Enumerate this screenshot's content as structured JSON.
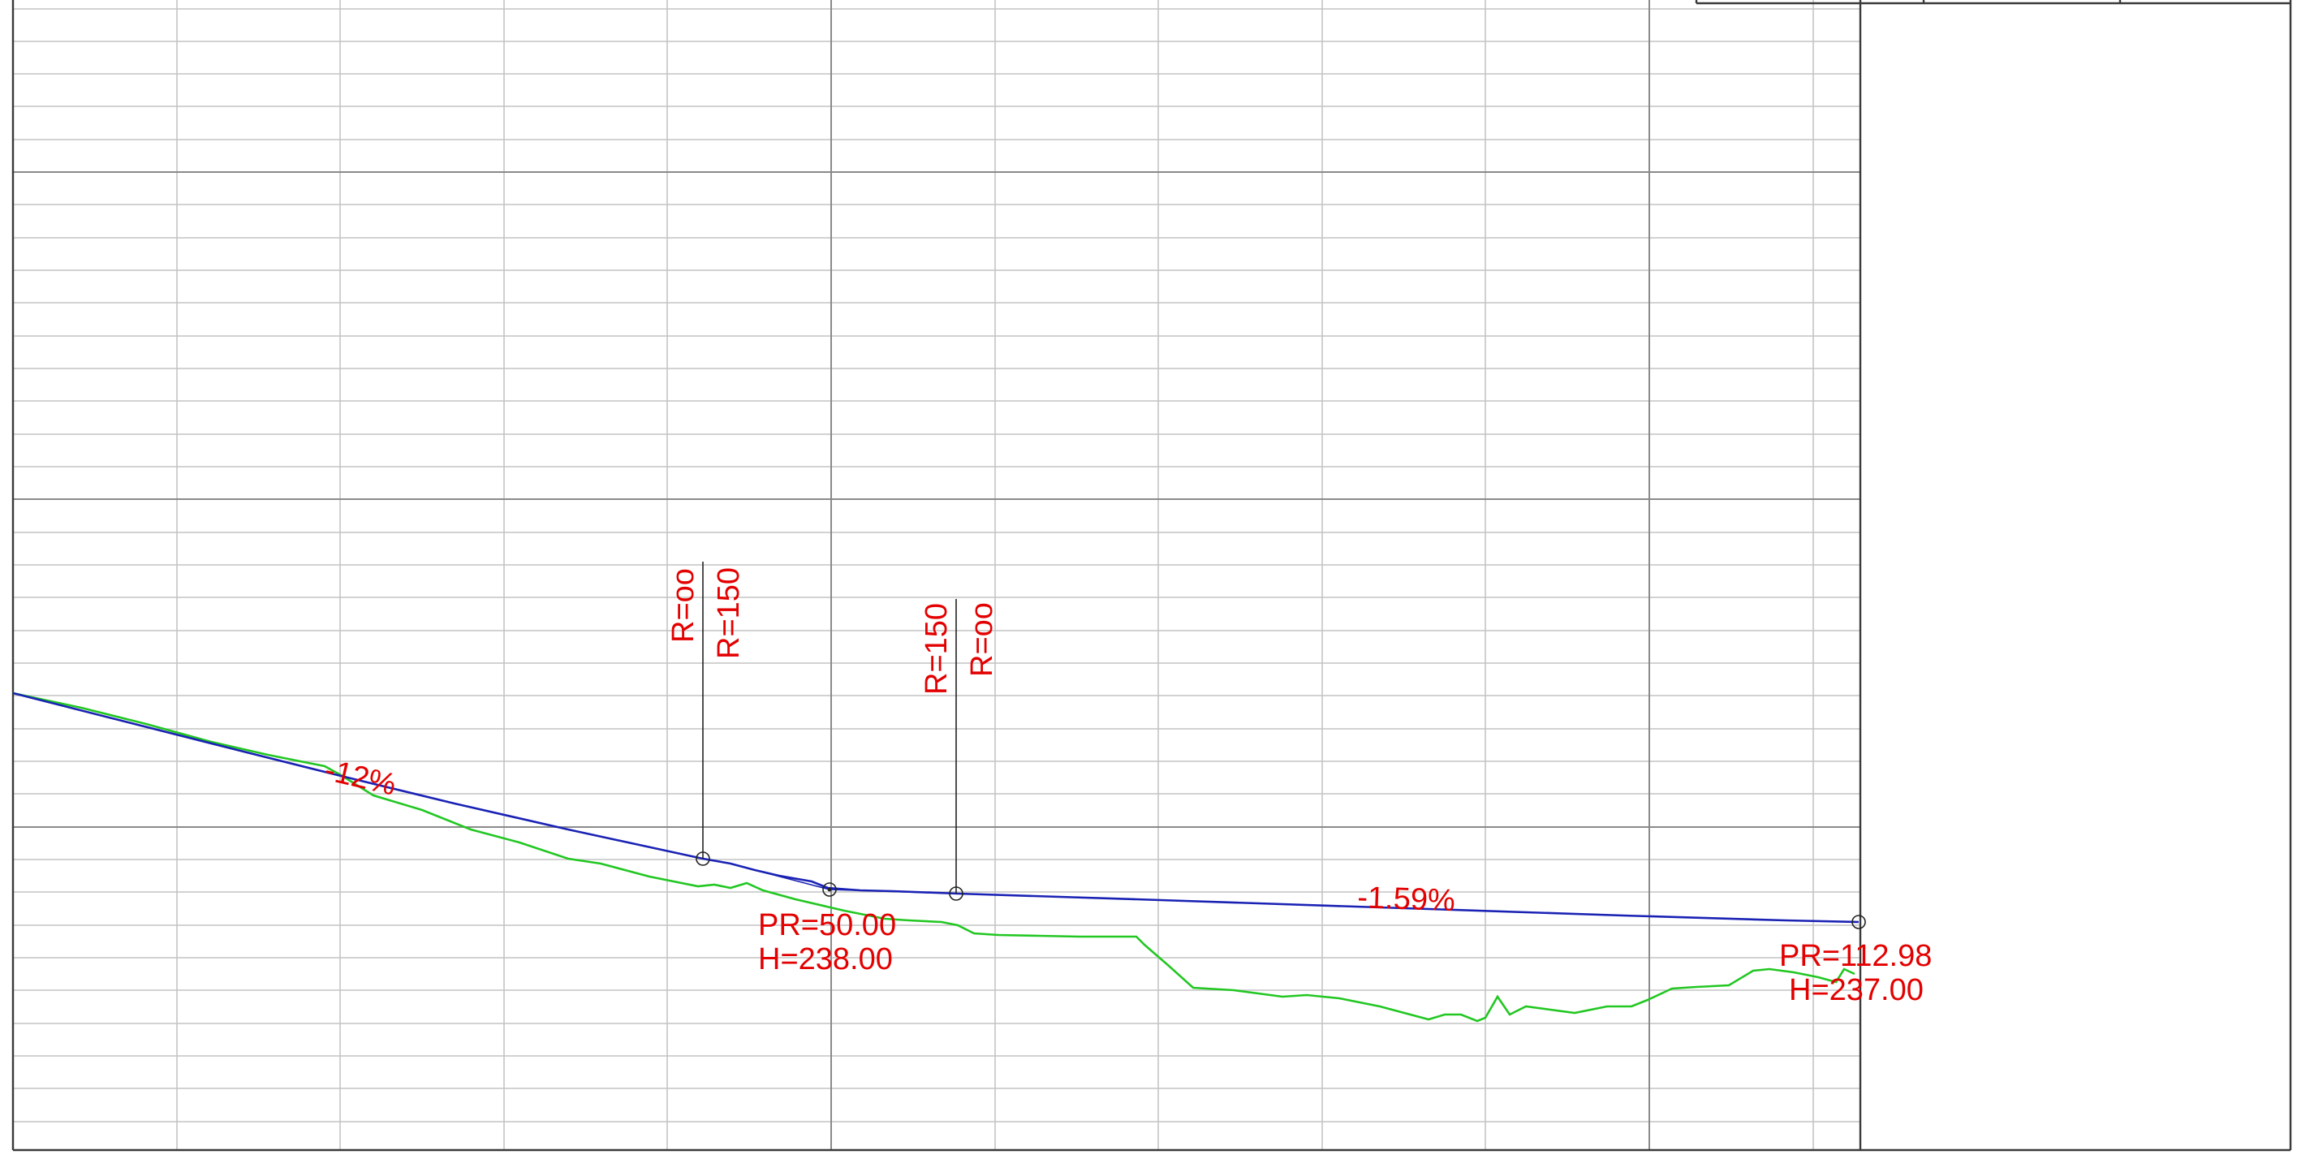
{
  "colors": {
    "design_line": "#1a22b4",
    "terrain_line": "#22c722",
    "annotation": "#e30000",
    "grid_minor": "#c4c4c4",
    "grid_major": "#8a8a8a",
    "frame": "#3a3a3a"
  },
  "grades": {
    "first": "-12%",
    "second": "-1.59%"
  },
  "curve_labels": {
    "start_left": "R=oo",
    "start_right": "R=150",
    "end_left": "R=150",
    "end_right": "R=oo"
  },
  "points": [
    {
      "pr": "PR=50.00",
      "h": "H=238.00"
    },
    {
      "pr": "PR=112.98",
      "h": "H=237.00"
    }
  ]
}
